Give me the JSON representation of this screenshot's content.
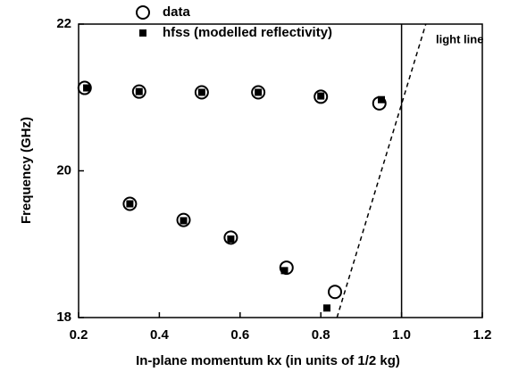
{
  "chart_data": {
    "type": "scatter",
    "xlabel": "In-plane momentum kx (in units of 1/2 kg)",
    "ylabel": "Frequency (GHz)",
    "xlim": [
      0.2,
      1.2
    ],
    "xticks": [
      0.2,
      0.4,
      0.6,
      0.8,
      {
        "value": 1,
        "label": "1.0"
      },
      1.2
    ],
    "ylim": [
      18,
      22
    ],
    "yticks": [
      18,
      20,
      22
    ],
    "legend": "top-left",
    "series": [
      {
        "name": "data",
        "marker": "open-circle",
        "color": "#000000",
        "x": [
          0.215,
          0.35,
          0.505,
          0.645,
          0.8,
          0.945,
          0.327,
          0.46,
          0.577,
          0.715,
          0.835
        ],
        "values": [
          21.13,
          21.08,
          21.07,
          21.07,
          21.01,
          20.92,
          19.55,
          19.33,
          19.09,
          18.68,
          18.35
        ]
      },
      {
        "name": "hfss (modelled reflectivity)",
        "marker": "filled-square",
        "color": "#000000",
        "x": [
          0.22,
          0.35,
          0.505,
          0.645,
          0.8,
          0.95,
          0.327,
          0.46,
          0.577,
          0.71,
          0.815
        ],
        "values": [
          21.13,
          21.08,
          21.07,
          21.07,
          21.02,
          20.97,
          19.55,
          19.32,
          19.07,
          18.64,
          18.13
        ]
      }
    ],
    "light_line": {
      "text": "light line",
      "x": [
        0.84,
        1.06
      ],
      "y": [
        18,
        22
      ]
    },
    "vertical_line": {
      "x": 1.0
    }
  }
}
